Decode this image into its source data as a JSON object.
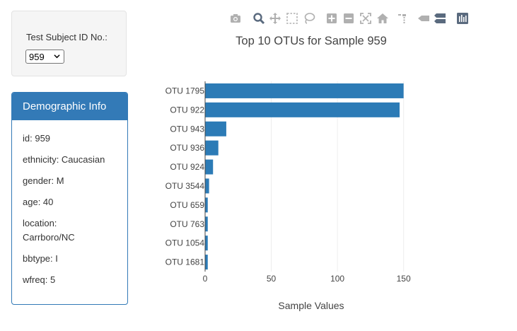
{
  "selector": {
    "label": "Test Subject ID No.:",
    "selected": "959"
  },
  "demographics": {
    "heading": "Demographic Info",
    "items": [
      [
        "id: 959"
      ],
      [
        "ethnicity: Caucasian"
      ],
      [
        "gender: M"
      ],
      [
        "age: 40"
      ],
      [
        "location:",
        "Carrboro/NC"
      ],
      [
        "bbtype: I"
      ],
      [
        "wfreq: 5"
      ]
    ]
  },
  "toolbar": {
    "icons": [
      "camera-icon",
      "zoom-icon",
      "pan-icon",
      "box-select-icon",
      "lasso-icon",
      "zoom-in-icon",
      "zoom-out-icon",
      "autoscale-icon",
      "reset-axes-icon",
      "spike-lines-icon",
      "hover-closest-icon",
      "hover-compare-icon",
      "plotly-logo-icon"
    ],
    "icon_color": "#a0a0a0",
    "active_color": "#5a6a7e"
  },
  "chart_data": {
    "type": "bar",
    "orientation": "horizontal",
    "title": "Top 10 OTUs for Sample 959",
    "xlabel": "Sample Values",
    "ylabel": "",
    "categories": [
      "OTU 1795",
      "OTU 922",
      "OTU 943",
      "OTU 936",
      "OTU 924",
      "OTU 3544",
      "OTU 659",
      "OTU 763",
      "OTU 1054",
      "OTU 1681"
    ],
    "values": [
      150,
      147,
      16,
      10,
      6,
      3,
      2,
      2,
      2,
      2
    ],
    "xlim": [
      0,
      155
    ],
    "xticks": [
      0,
      50,
      100,
      150
    ],
    "bar_color": "#2c7bb6",
    "grid": true
  }
}
